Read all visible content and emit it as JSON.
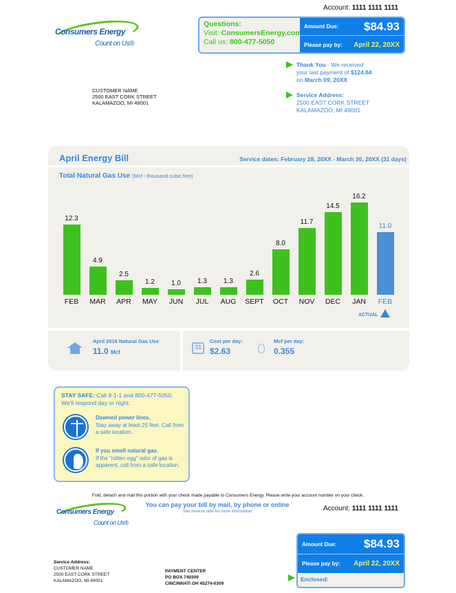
{
  "header": {
    "account_label": "Account:",
    "account_number": "1111 1111 1111"
  },
  "logo": {
    "name": "Consumers Energy",
    "tagline": "Count on Us®"
  },
  "questions": {
    "title": "Questions:",
    "visit_label": "Visit:",
    "website": "ConsumersEnergy.com",
    "call_label": "Call us:",
    "phone": "800-477-5050"
  },
  "due": {
    "amount_label": "Amount Due:",
    "amount": "$84.93",
    "pay_by_label": "Please pay by:",
    "pay_by": "April 22, 20XX"
  },
  "thank_you": {
    "title": "Thank You",
    "line1": " - We received",
    "line2": "your last payment of ",
    "amount": "$124.84",
    "line3": "on ",
    "date": "March 09, 20XX"
  },
  "service": {
    "title": "Service Address:",
    "street": "2500 EAST CORK STREET",
    "city": "KALAMAZOO, MI 49001"
  },
  "customer": {
    "name": "CUSTOMER NAME",
    "street": "2500 EAST CORK STREET",
    "city": "KALAMAZOO, MI 49001"
  },
  "bill": {
    "title": "April Energy Bill",
    "service_dates": "Service dates: February 28, 20XX - March 30, 20XX (31 days)"
  },
  "chart_data": {
    "type": "bar",
    "title": "Total Natural Gas Use",
    "subtitle": "(Mcf - thousand cubic feet)",
    "categories": [
      "FEB",
      "MAR",
      "APR",
      "MAY",
      "JUN",
      "JUL",
      "AUG",
      "SEPT",
      "OCT",
      "NOV",
      "DEC",
      "JAN",
      "FEB"
    ],
    "values": [
      12.3,
      4.9,
      2.5,
      1.2,
      1.0,
      1.3,
      1.3,
      2.6,
      8.0,
      11.7,
      14.5,
      16.2,
      11.0
    ],
    "value_labels": [
      "12.3",
      "4.9",
      "2.5",
      "1.2",
      "1.0",
      "1.3",
      "1.3",
      "2.6",
      "8.0",
      "11.7",
      "14.5",
      "16.2",
      "11.0"
    ],
    "highlight_index": 12,
    "highlight_label": "ACTUAL",
    "colors": {
      "history": "#3ec11e",
      "actual": "#4a8fd8"
    },
    "ylim": [
      0,
      17
    ]
  },
  "stats": {
    "usage_label": "April 2016 Natural Gas Use",
    "usage_value": "11.0",
    "usage_unit": "Mcf",
    "cost_label": "Cost per day:",
    "cost_value": "$2.63",
    "mcf_label": "Mcf per day:",
    "mcf_value": "0.355",
    "calendar_day": "31"
  },
  "safety": {
    "title": "STAY SAFE:",
    "intro": " Call 9-1-1 and 800-477-5050.",
    "intro2": "We'll respond day or night.",
    "item1_title": "Downed power lines.",
    "item1_text": "Stay away at least 25 feet. Call from a safe location.",
    "item2_title": "If you smell natural gas.",
    "item2_text": "If the \"rotten egg\" odor of gas is apparent, call from a safe location."
  },
  "stub": {
    "fold_text": "Fold, detach and mail this portion with your check made payable to Consumers Energy. Please write your account number on your check.",
    "pay_text": "You can pay your bill by mail, by phone or online",
    "reverse_text": "See reverse side for more information",
    "service_label": "Service Address:",
    "payment_center": [
      "PAYMENT CENTER",
      "PO BOX 740309",
      "CINCINNATI OH 45274-0309"
    ],
    "enclosed_label": "Enclosed:"
  }
}
